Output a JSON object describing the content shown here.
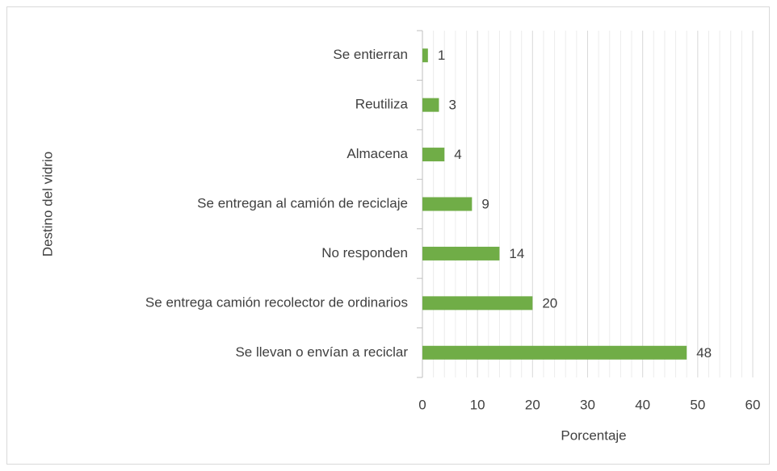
{
  "chart_data": {
    "type": "bar",
    "orientation": "horizontal",
    "y_axis_title": "Destino del vidrio",
    "x_axis_title": "Porcentaje",
    "categories": [
      "Se entierran",
      "Reutiliza",
      "Almacena",
      "Se entregan al camión de reciclaje",
      "No responden",
      "Se entrega camión recolector de ordinarios",
      "Se llevan o envían a reciclar"
    ],
    "values": [
      1,
      3,
      4,
      9,
      14,
      20,
      48
    ],
    "color": "#70ad47",
    "xlim": [
      0,
      60
    ],
    "xticks": [
      0,
      10,
      20,
      30,
      40,
      50,
      60
    ],
    "minor_xticks": [
      2,
      4,
      6,
      8,
      12,
      14,
      16,
      18,
      22,
      24,
      26,
      28,
      32,
      34,
      36,
      38,
      42,
      44,
      46,
      48,
      52,
      54,
      56,
      58
    ],
    "grid": true
  }
}
